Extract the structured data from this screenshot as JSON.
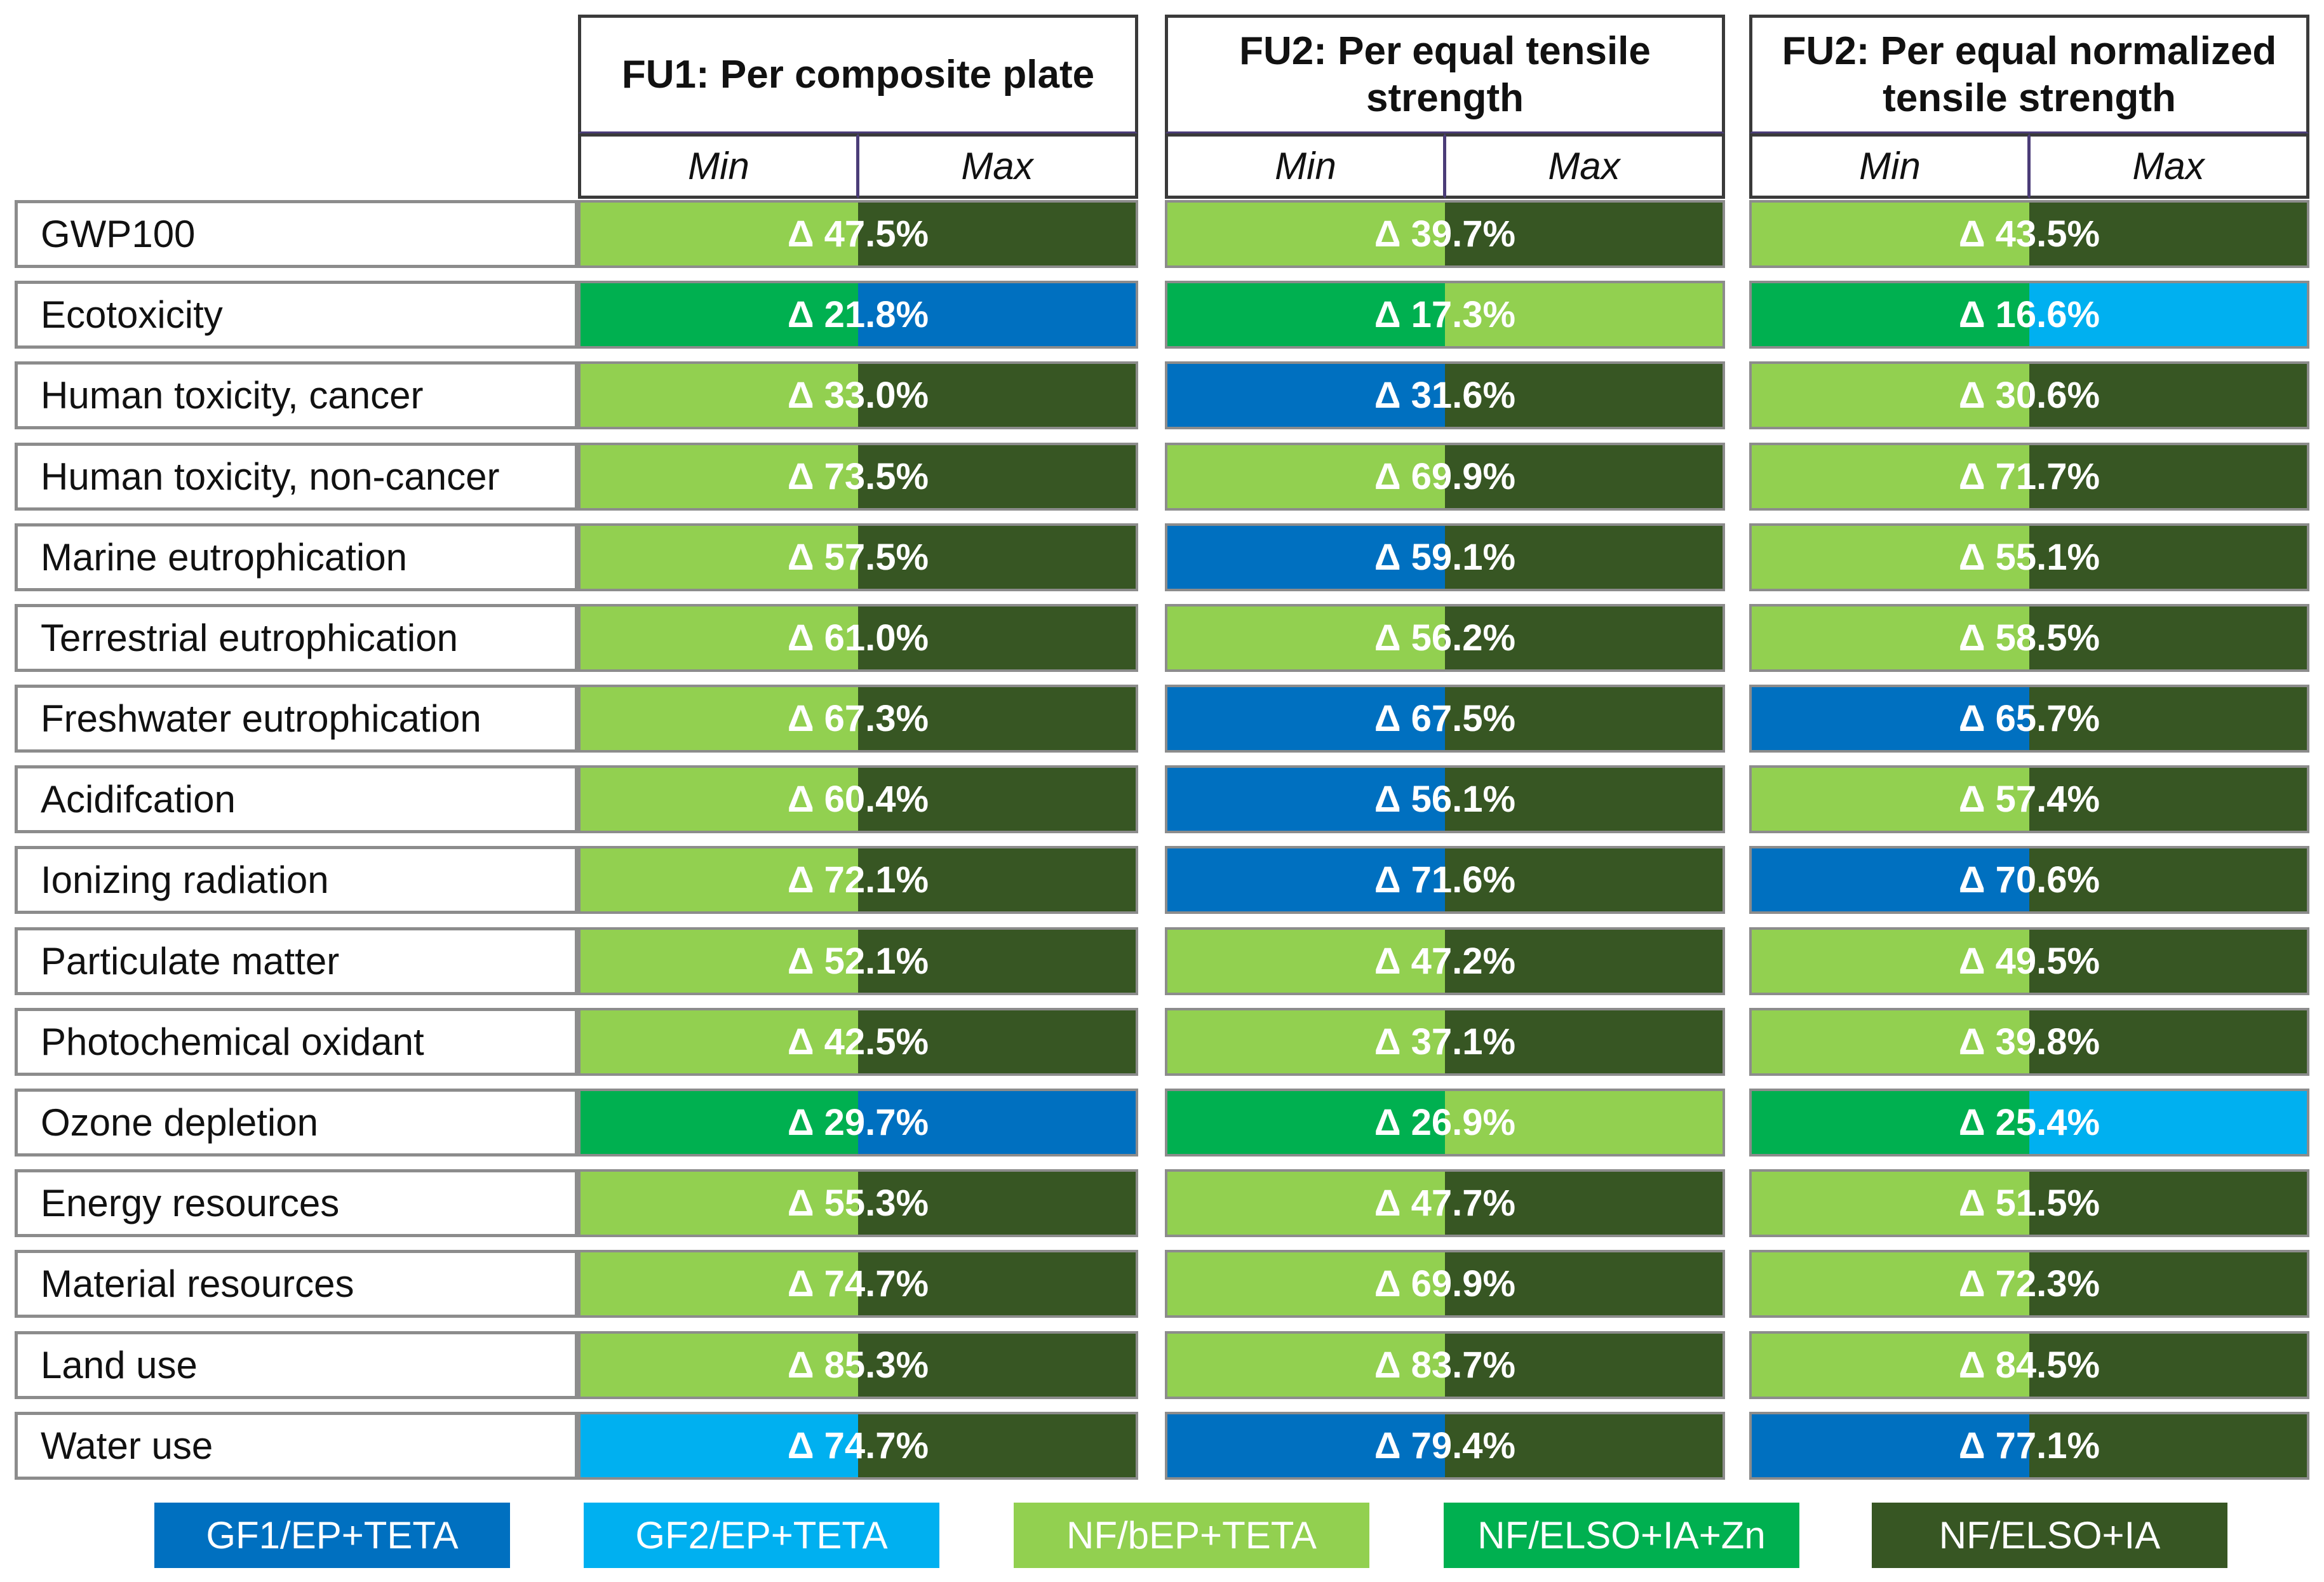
{
  "headers": [
    {
      "line1": "FU1: Per composite plate",
      "line2": ""
    },
    {
      "line1": "FU2: Per equal tensile",
      "line2": "strength"
    },
    {
      "line1": "FU2: Per equal normalized",
      "line2": "tensile strength"
    }
  ],
  "subheaders": {
    "min": "Min",
    "max": "Max"
  },
  "colors": {
    "GF1": "#0070C0",
    "GF2": "#00B0F0",
    "NFb": "#92D050",
    "NFZn": "#00B050",
    "NFIA": "#375623"
  },
  "rows": [
    {
      "label": "GWP100",
      "cells": [
        {
          "value": "Δ 47.5%",
          "min": "NFb",
          "max": "NFIA"
        },
        {
          "value": "Δ 39.7%",
          "min": "NFb",
          "max": "NFIA"
        },
        {
          "value": "Δ 43.5%",
          "min": "NFb",
          "max": "NFIA"
        }
      ]
    },
    {
      "label": "Ecotoxicity",
      "cells": [
        {
          "value": "Δ 21.8%",
          "min": "NFZn",
          "max": "GF1"
        },
        {
          "value": "Δ 17.3%",
          "min": "NFZn",
          "max": "NFb"
        },
        {
          "value": "Δ 16.6%",
          "min": "NFZn",
          "max": "GF2"
        }
      ]
    },
    {
      "label": "Human toxicity, cancer",
      "cells": [
        {
          "value": "Δ 33.0%",
          "min": "NFb",
          "max": "NFIA"
        },
        {
          "value": "Δ 31.6%",
          "min": "GF1",
          "max": "NFIA"
        },
        {
          "value": "Δ 30.6%",
          "min": "NFb",
          "max": "NFIA"
        }
      ]
    },
    {
      "label": "Human toxicity, non-cancer",
      "cells": [
        {
          "value": "Δ 73.5%",
          "min": "NFb",
          "max": "NFIA"
        },
        {
          "value": "Δ 69.9%",
          "min": "NFb",
          "max": "NFIA"
        },
        {
          "value": "Δ 71.7%",
          "min": "NFb",
          "max": "NFIA"
        }
      ]
    },
    {
      "label": "Marine eutrophication",
      "cells": [
        {
          "value": "Δ 57.5%",
          "min": "NFb",
          "max": "NFIA"
        },
        {
          "value": "Δ 59.1%",
          "min": "GF1",
          "max": "NFIA"
        },
        {
          "value": "Δ 55.1%",
          "min": "NFb",
          "max": "NFIA"
        }
      ]
    },
    {
      "label": "Terrestrial eutrophication",
      "cells": [
        {
          "value": "Δ 61.0%",
          "min": "NFb",
          "max": "NFIA"
        },
        {
          "value": "Δ 56.2%",
          "min": "NFb",
          "max": "NFIA"
        },
        {
          "value": "Δ 58.5%",
          "min": "NFb",
          "max": "NFIA"
        }
      ]
    },
    {
      "label": "Freshwater eutrophication",
      "cells": [
        {
          "value": "Δ 67.3%",
          "min": "NFb",
          "max": "NFIA"
        },
        {
          "value": "Δ 67.5%",
          "min": "GF1",
          "max": "NFIA"
        },
        {
          "value": "Δ 65.7%",
          "min": "GF1",
          "max": "NFIA"
        }
      ]
    },
    {
      "label": "Acidifcation",
      "cells": [
        {
          "value": "Δ 60.4%",
          "min": "NFb",
          "max": "NFIA"
        },
        {
          "value": "Δ 56.1%",
          "min": "GF1",
          "max": "NFIA"
        },
        {
          "value": "Δ 57.4%",
          "min": "NFb",
          "max": "NFIA"
        }
      ]
    },
    {
      "label": "Ionizing radiation",
      "cells": [
        {
          "value": "Δ 72.1%",
          "min": "NFb",
          "max": "NFIA"
        },
        {
          "value": "Δ 71.6%",
          "min": "GF1",
          "max": "NFIA"
        },
        {
          "value": "Δ 70.6%",
          "min": "GF1",
          "max": "NFIA"
        }
      ]
    },
    {
      "label": "Particulate matter",
      "cells": [
        {
          "value": "Δ 52.1%",
          "min": "NFb",
          "max": "NFIA"
        },
        {
          "value": "Δ 47.2%",
          "min": "NFb",
          "max": "NFIA"
        },
        {
          "value": "Δ 49.5%",
          "min": "NFb",
          "max": "NFIA"
        }
      ]
    },
    {
      "label": "Photochemical oxidant",
      "cells": [
        {
          "value": "Δ 42.5%",
          "min": "NFb",
          "max": "NFIA"
        },
        {
          "value": "Δ 37.1%",
          "min": "NFb",
          "max": "NFIA"
        },
        {
          "value": "Δ 39.8%",
          "min": "NFb",
          "max": "NFIA"
        }
      ]
    },
    {
      "label": "Ozone depletion",
      "cells": [
        {
          "value": "Δ 29.7%",
          "min": "NFZn",
          "max": "GF1"
        },
        {
          "value": "Δ 26.9%",
          "min": "NFZn",
          "max": "NFb"
        },
        {
          "value": "Δ 25.4%",
          "min": "NFZn",
          "max": "GF2"
        }
      ]
    },
    {
      "label": "Energy resources",
      "cells": [
        {
          "value": "Δ 55.3%",
          "min": "NFb",
          "max": "NFIA"
        },
        {
          "value": "Δ 47.7%",
          "min": "NFb",
          "max": "NFIA"
        },
        {
          "value": "Δ 51.5%",
          "min": "NFb",
          "max": "NFIA"
        }
      ]
    },
    {
      "label": "Material resources",
      "cells": [
        {
          "value": "Δ 74.7%",
          "min": "NFb",
          "max": "NFIA"
        },
        {
          "value": "Δ 69.9%",
          "min": "NFb",
          "max": "NFIA"
        },
        {
          "value": "Δ 72.3%",
          "min": "NFb",
          "max": "NFIA"
        }
      ]
    },
    {
      "label": "Land use",
      "cells": [
        {
          "value": "Δ 85.3%",
          "min": "NFb",
          "max": "NFIA"
        },
        {
          "value": "Δ 83.7%",
          "min": "NFb",
          "max": "NFIA"
        },
        {
          "value": "Δ 84.5%",
          "min": "NFb",
          "max": "NFIA"
        }
      ]
    },
    {
      "label": "Water use",
      "cells": [
        {
          "value": "Δ 74.7%",
          "min": "GF2",
          "max": "NFIA"
        },
        {
          "value": "Δ 79.4%",
          "min": "GF1",
          "max": "NFIA"
        },
        {
          "value": "Δ 77.1%",
          "min": "GF1",
          "max": "NFIA"
        }
      ]
    }
  ],
  "legend": [
    {
      "label": "GF1/EP+TETA",
      "key": "GF1"
    },
    {
      "label": "GF2/EP+TETA",
      "key": "GF2"
    },
    {
      "label": "NF/bEP+TETA",
      "key": "NFb"
    },
    {
      "label": "NF/ELSO+IA+Zn",
      "key": "NFZn"
    },
    {
      "label": "NF/ELSO+IA",
      "key": "NFIA"
    }
  ]
}
